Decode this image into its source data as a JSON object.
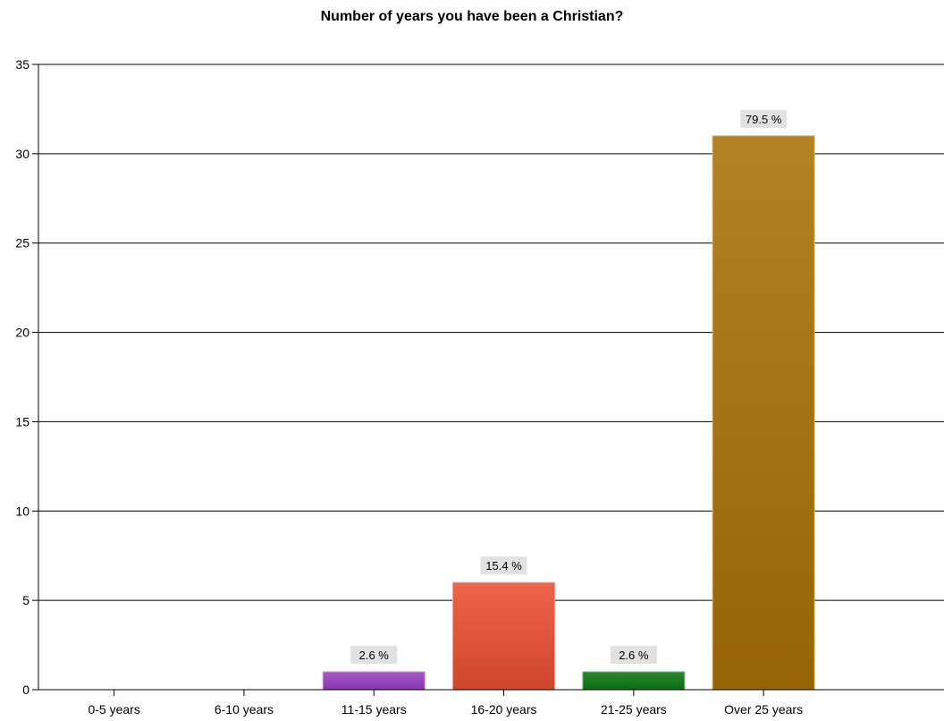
{
  "chart_data": {
    "type": "bar",
    "title": "Number of years you have been a Christian?",
    "xlabel": "",
    "ylabel": "",
    "categories": [
      "0-5 years",
      "6-10 years",
      "11-15 years",
      "16-20 years",
      "21-25 years",
      "Over 25 years"
    ],
    "values": [
      0,
      0,
      1,
      6,
      1,
      31
    ],
    "data_labels": [
      "",
      "",
      "2.6 %",
      "15.4 %",
      "2.6 %",
      "79.5 %"
    ],
    "colors": [
      "#8e44ad",
      "#8e44ad",
      "#9b3fc4",
      "#ea4f32",
      "#0c7a14",
      "#a97205"
    ],
    "ylim": [
      0,
      35
    ],
    "yticks": [
      0,
      5,
      10,
      15,
      20,
      25,
      30,
      35
    ],
    "grid": true,
    "legend": "none"
  }
}
